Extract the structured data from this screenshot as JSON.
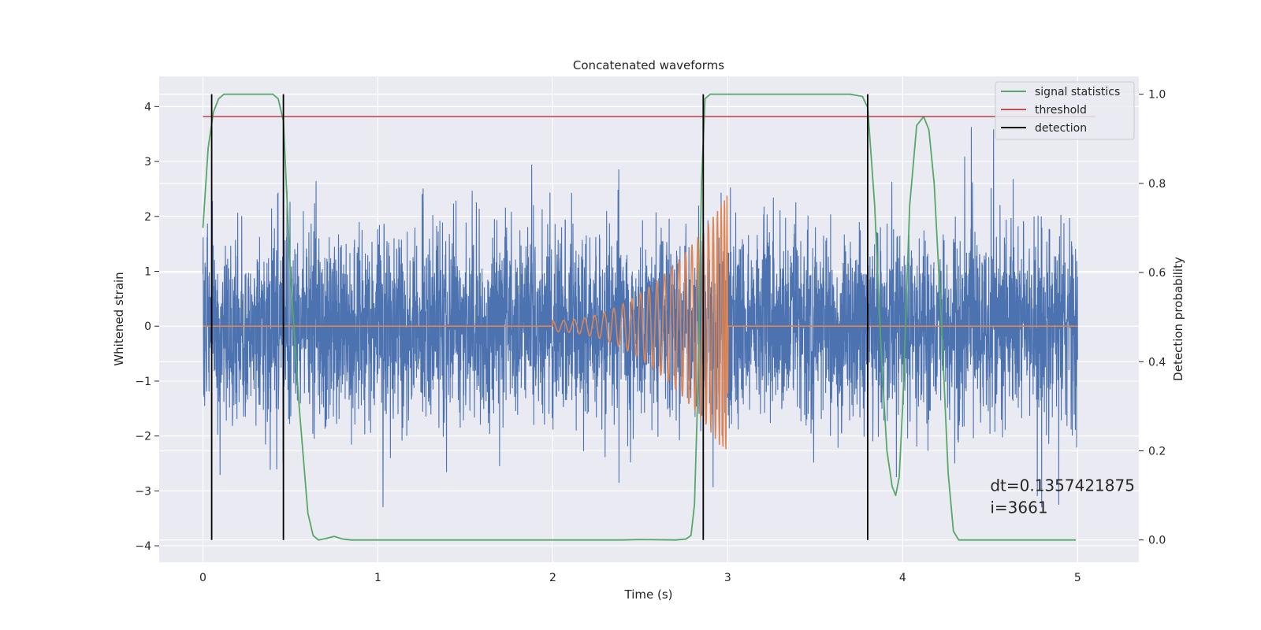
{
  "chart_data": {
    "type": "line",
    "title": "Concatenated waveforms",
    "xlabel": "Time (s)",
    "ylabel": "Whitened strain",
    "y2label": "Detection probability",
    "xlim": [
      -0.25,
      5.35
    ],
    "ylim": [
      -4.3,
      4.55
    ],
    "y2lim": [
      -0.05,
      1.04
    ],
    "x_ticks": [
      0,
      1,
      2,
      3,
      4,
      5
    ],
    "y_ticks": [
      -4,
      -3,
      -2,
      -1,
      0,
      1,
      2,
      3,
      4
    ],
    "y2_ticks": [
      0.0,
      0.2,
      0.4,
      0.6,
      0.8,
      1.0
    ],
    "x_tick_labels": [
      "0",
      "1",
      "2",
      "3",
      "4",
      "5"
    ],
    "y_tick_labels": [
      "−4",
      "−3",
      "−2",
      "−1",
      "0",
      "1",
      "2",
      "3",
      "4"
    ],
    "y2_tick_labels": [
      "0.0",
      "0.2",
      "0.4",
      "0.6",
      "0.8",
      "1.0"
    ],
    "grid": true,
    "legend_position": "top-right",
    "colors": {
      "background": "#eaeaf2",
      "grid": "#ffffff",
      "strain": "#4c72b0",
      "template": "#dd8452",
      "statistic": "#55a868",
      "threshold": "#c44e52",
      "detection": "#000000"
    },
    "series": [
      {
        "name": "",
        "kind": "whitened-strain-noise",
        "axis": "left",
        "x_range": [
          0,
          5
        ],
        "typical_amplitude": 1.0,
        "peak_range": [
          -3.9,
          4.15
        ]
      },
      {
        "name": "",
        "kind": "chirp-template",
        "axis": "left",
        "x_range": [
          0,
          5
        ],
        "chirp_start": 2.0,
        "chirp_end": 3.0,
        "start_amplitude": 0.1,
        "end_amplitude": 2.4
      },
      {
        "name": "signal statistics",
        "axis": "right",
        "x": [
          0.0,
          0.03,
          0.06,
          0.09,
          0.12,
          0.2,
          0.3,
          0.4,
          0.43,
          0.46,
          0.5,
          0.55,
          0.6,
          0.63,
          0.66,
          0.7,
          0.75,
          0.8,
          0.85,
          0.9,
          1.5,
          2.0,
          2.4,
          2.5,
          2.7,
          2.76,
          2.79,
          2.81,
          2.83,
          2.85,
          2.87,
          2.9,
          3.0,
          3.5,
          3.7,
          3.77,
          3.8,
          3.84,
          3.88,
          3.91,
          3.94,
          3.96,
          3.98,
          4.0,
          4.04,
          4.08,
          4.12,
          4.15,
          4.18,
          4.22,
          4.26,
          4.29,
          4.32,
          4.36,
          4.5,
          4.99
        ],
        "values": [
          0.7,
          0.88,
          0.96,
          0.99,
          1.0,
          1.0,
          1.0,
          1.0,
          0.99,
          0.94,
          0.6,
          0.3,
          0.06,
          0.01,
          0.0,
          0.003,
          0.008,
          0.002,
          0.0,
          0.0,
          0.0,
          0.0,
          0.0,
          0.001,
          0.0,
          0.002,
          0.01,
          0.08,
          0.35,
          0.8,
          0.99,
          1.0,
          1.0,
          1.0,
          1.0,
          0.995,
          0.97,
          0.75,
          0.4,
          0.2,
          0.12,
          0.1,
          0.14,
          0.3,
          0.75,
          0.93,
          0.95,
          0.92,
          0.8,
          0.5,
          0.15,
          0.02,
          0.0,
          0.0,
          0.0,
          0.0
        ]
      },
      {
        "name": "threshold",
        "axis": "right",
        "x": [
          0,
          5.1
        ],
        "values": [
          0.95,
          0.95
        ]
      },
      {
        "name": "detection",
        "axis": "right",
        "x": [
          0.05,
          0.46,
          2.86,
          3.8
        ],
        "y_range": [
          0.0,
          1.0
        ]
      }
    ],
    "annotations": [
      {
        "text": "dt=0.1357421875",
        "x": 4.5,
        "y": -3.0
      },
      {
        "text": " i=3661",
        "x": 4.5,
        "y": -3.4
      }
    ]
  }
}
